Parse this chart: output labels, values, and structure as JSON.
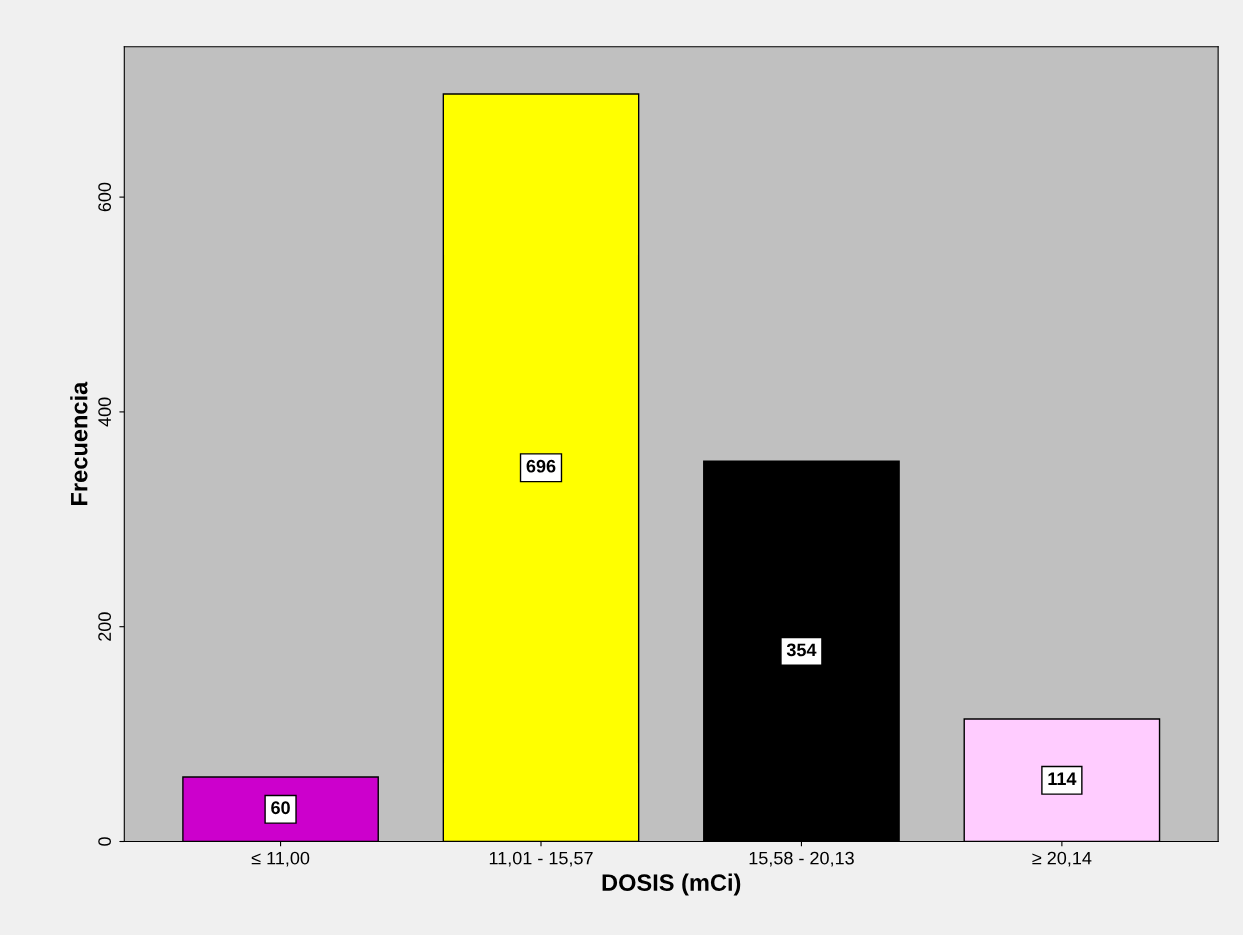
{
  "chart_data": {
    "type": "bar",
    "xlabel": "DOSIS (mCi)",
    "ylabel": "Frecuencia",
    "categories": [
      "≤ 11,00",
      "11,01 - 15,57",
      "15,58 - 20,13",
      "≥ 20,14"
    ],
    "values": [
      60,
      696,
      354,
      114
    ],
    "colors": [
      "#cc00cc",
      "#ffff00",
      "#000000",
      "#ffccff"
    ],
    "ylim": [
      0,
      740
    ],
    "yticks": [
      0,
      200,
      400,
      600
    ],
    "grid": false,
    "legend": false,
    "data_labels": true
  }
}
